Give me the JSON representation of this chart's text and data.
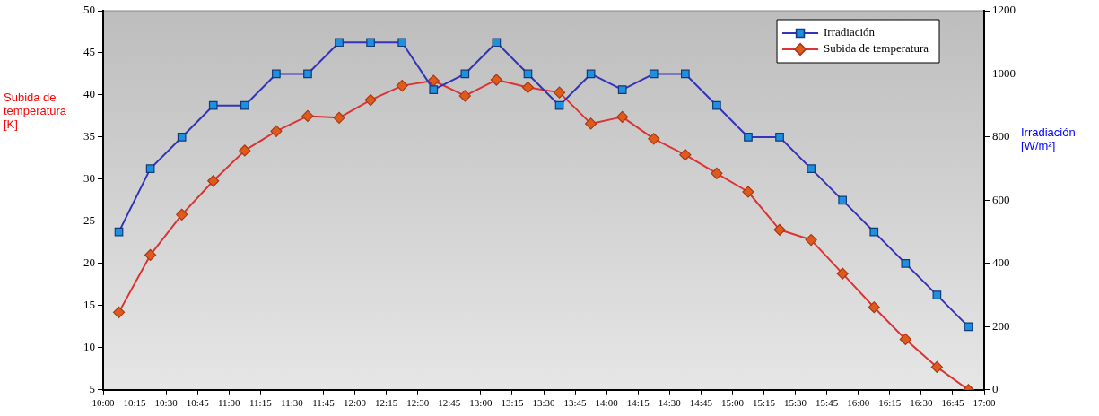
{
  "chart_data": {
    "type": "line",
    "ylabel": "Subida de temperatura [K]",
    "y2label": "Irradiación [W/m²]",
    "x": [
      10.125,
      10.375,
      10.625,
      10.875,
      11.125,
      11.375,
      11.625,
      11.875,
      12.125,
      12.375,
      12.625,
      12.875,
      13.125,
      13.375,
      13.625,
      13.875,
      14.125,
      14.375,
      14.625,
      14.875,
      15.125,
      15.375,
      15.625,
      15.875,
      16.125,
      16.375,
      16.625,
      16.875
    ],
    "xlim": [
      10,
      17
    ],
    "xticks": [
      {
        "value": 10,
        "label": "10:00"
      },
      {
        "value": 10.25,
        "label": "10:15"
      },
      {
        "value": 10.5,
        "label": "10:30"
      },
      {
        "value": 10.75,
        "label": "10:45"
      },
      {
        "value": 11,
        "label": "11:00"
      },
      {
        "value": 11.25,
        "label": "11:15"
      },
      {
        "value": 11.5,
        "label": "11:30"
      },
      {
        "value": 11.75,
        "label": "11:45"
      },
      {
        "value": 12,
        "label": "12:00"
      },
      {
        "value": 12.25,
        "label": "12:15"
      },
      {
        "value": 12.5,
        "label": "12:30"
      },
      {
        "value": 12.75,
        "label": "12:45"
      },
      {
        "value": 13,
        "label": "13:00"
      },
      {
        "value": 13.25,
        "label": "13:15"
      },
      {
        "value": 13.5,
        "label": "13:30"
      },
      {
        "value": 13.75,
        "label": "13:45"
      },
      {
        "value": 14,
        "label": "14:00"
      },
      {
        "value": 14.25,
        "label": "14:15"
      },
      {
        "value": 14.5,
        "label": "14:30"
      },
      {
        "value": 14.75,
        "label": "14:45"
      },
      {
        "value": 15,
        "label": "15:00"
      },
      {
        "value": 15.25,
        "label": "15:15"
      },
      {
        "value": 15.5,
        "label": "15:30"
      },
      {
        "value": 15.75,
        "label": "15:45"
      },
      {
        "value": 16,
        "label": "16:00"
      },
      {
        "value": 16.25,
        "label": "16:15"
      },
      {
        "value": 16.5,
        "label": "16:30"
      },
      {
        "value": 16.75,
        "label": "16:45"
      },
      {
        "value": 17,
        "label": "17:00"
      }
    ],
    "ylim": [
      5,
      50
    ],
    "yticks": [
      5,
      10,
      15,
      20,
      25,
      30,
      35,
      40,
      45,
      50
    ],
    "y2lim": [
      0,
      1200
    ],
    "y2ticks": [
      0,
      200,
      400,
      600,
      800,
      1000,
      1200
    ],
    "series": [
      {
        "name": "Irradiación",
        "color": "#1e90e0",
        "axis": "y2",
        "marker": "square",
        "values": [
          500,
          700,
          800,
          900,
          900,
          1000,
          1000,
          1100,
          1100,
          1100,
          950,
          1000,
          1100,
          1000,
          900,
          1000,
          950,
          1000,
          1000,
          900,
          800,
          800,
          700,
          600,
          500,
          400,
          300,
          200
        ]
      },
      {
        "name": "Subida de temperatura",
        "color": "#e05a1e",
        "axis": "y",
        "marker": "diamond",
        "values": [
          14.2,
          21.0,
          25.8,
          29.8,
          33.4,
          35.7,
          37.5,
          37.3,
          39.4,
          41.1,
          41.7,
          39.9,
          41.8,
          40.9,
          40.3,
          36.6,
          37.4,
          34.8,
          32.9,
          30.7,
          28.5,
          24.0,
          22.8,
          18.8,
          14.8,
          11.0,
          7.7,
          5
        ]
      }
    ],
    "grid": false,
    "legend": "top right",
    "line_style": "solid"
  }
}
